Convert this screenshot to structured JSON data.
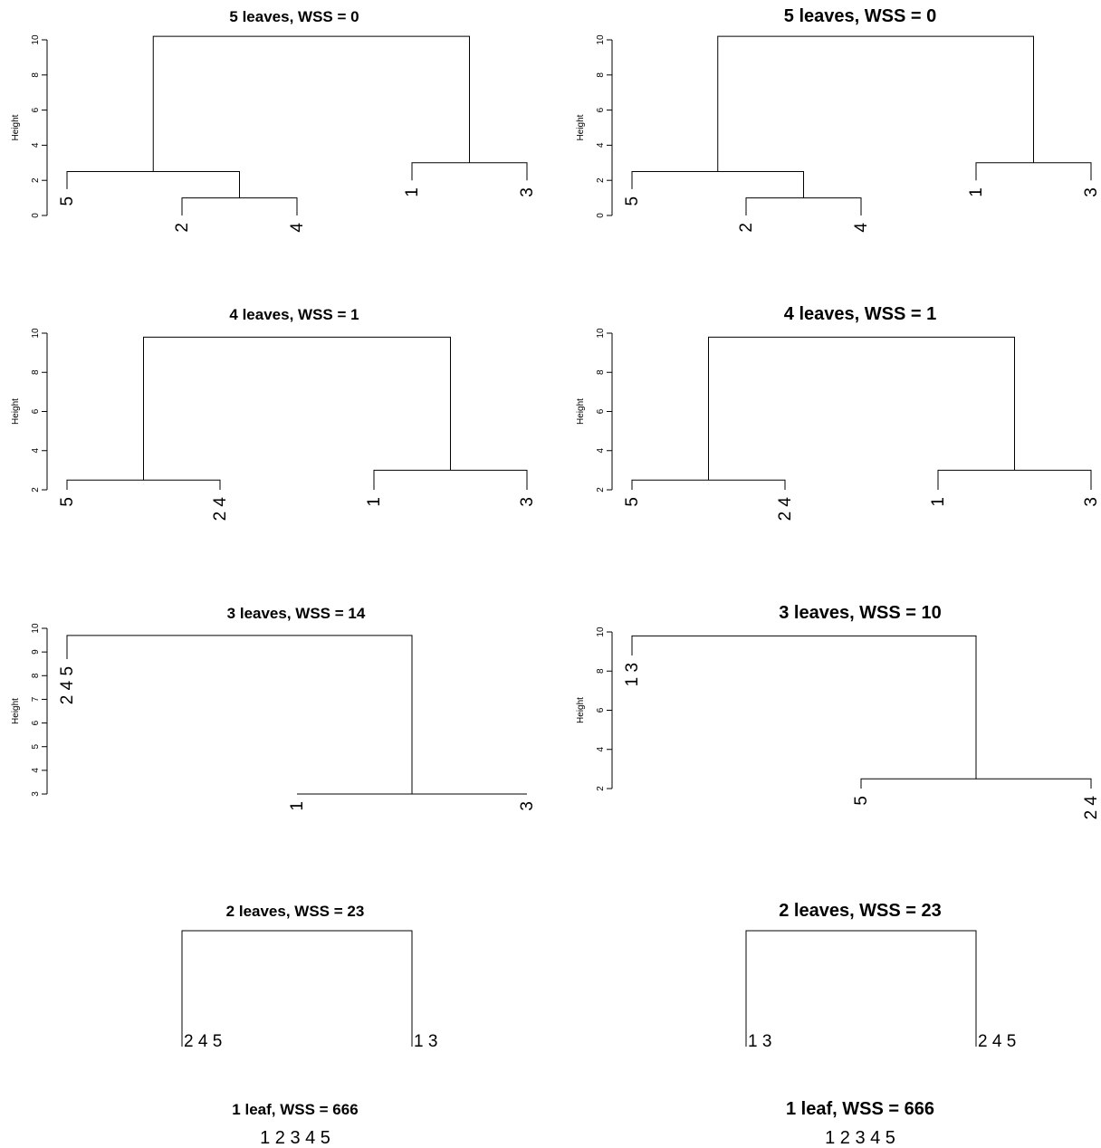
{
  "chart_data": [
    {
      "type": "dendrogram",
      "title": "5 leaves, WSS = 0",
      "ylabel": "Height",
      "ylim": [
        0,
        10
      ],
      "yticks": [
        "0",
        "2",
        "4",
        "6",
        "8",
        "10"
      ],
      "leaves": [
        "5",
        "2",
        "4",
        "1",
        "3"
      ],
      "merges": [
        {
          "members": [
            "2",
            "4"
          ],
          "height": 1.0
        },
        {
          "members": [
            "1",
            "3"
          ],
          "height": 3.0
        },
        {
          "members": [
            "5",
            "2 4"
          ],
          "height": 2.5
        },
        {
          "members": [
            "5 2 4",
            "1 3"
          ],
          "height": 10.2
        }
      ]
    },
    {
      "type": "dendrogram",
      "title": "5 leaves, WSS = 0",
      "ylabel": "Height",
      "ylim": [
        0,
        10
      ],
      "yticks": [
        "0",
        "2",
        "4",
        "6",
        "8",
        "10"
      ],
      "leaves": [
        "5",
        "2",
        "4",
        "1",
        "3"
      ],
      "merges": [
        {
          "members": [
            "2",
            "4"
          ],
          "height": 1.0
        },
        {
          "members": [
            "1",
            "3"
          ],
          "height": 3.0
        },
        {
          "members": [
            "5",
            "2 4"
          ],
          "height": 2.5
        },
        {
          "members": [
            "5 2 4",
            "1 3"
          ],
          "height": 10.2
        }
      ]
    },
    {
      "type": "dendrogram",
      "title": "4 leaves, WSS = 1",
      "ylabel": "Height",
      "ylim": [
        2,
        10
      ],
      "yticks": [
        "2",
        "4",
        "6",
        "8",
        "10"
      ],
      "leaves": [
        "5",
        "2 4",
        "1",
        "3"
      ],
      "merges": [
        {
          "members": [
            "5",
            "2 4"
          ],
          "height": 2.5
        },
        {
          "members": [
            "1",
            "3"
          ],
          "height": 3.0
        },
        {
          "members": [
            "5 2 4",
            "1 3"
          ],
          "height": 9.8
        }
      ]
    },
    {
      "type": "dendrogram",
      "title": "4 leaves, WSS = 1",
      "ylabel": "Height",
      "ylim": [
        2,
        10
      ],
      "yticks": [
        "2",
        "4",
        "6",
        "8",
        "10"
      ],
      "leaves": [
        "5",
        "2 4",
        "1",
        "3"
      ],
      "merges": [
        {
          "members": [
            "5",
            "2 4"
          ],
          "height": 2.5
        },
        {
          "members": [
            "1",
            "3"
          ],
          "height": 3.0
        },
        {
          "members": [
            "5 2 4",
            "1 3"
          ],
          "height": 9.8
        }
      ]
    },
    {
      "type": "dendrogram",
      "title": "3 leaves, WSS = 14",
      "ylabel": "Height",
      "ylim": [
        3,
        10
      ],
      "yticks": [
        "3",
        "4",
        "5",
        "6",
        "7",
        "8",
        "9",
        "10"
      ],
      "leaves": [
        "2 4 5",
        "1",
        "3"
      ],
      "merges": [
        {
          "members": [
            "1",
            "3"
          ],
          "height": 3.0
        },
        {
          "members": [
            "2 4 5",
            "1 3"
          ],
          "height": 9.7
        }
      ]
    },
    {
      "type": "dendrogram",
      "title": "3 leaves, WSS = 10",
      "ylabel": "Height",
      "ylim": [
        2,
        10
      ],
      "yticks": [
        "2",
        "4",
        "6",
        "8",
        "10"
      ],
      "leaves": [
        "1 3",
        "5",
        "2 4"
      ],
      "merges": [
        {
          "members": [
            "5",
            "2 4"
          ],
          "height": 2.5
        },
        {
          "members": [
            "1 3",
            "5 2 4"
          ],
          "height": 9.8
        }
      ]
    },
    {
      "type": "dendrogram",
      "title": "2  leaves, WSS = 23",
      "leaves": [
        "2 4 5",
        "1 3"
      ]
    },
    {
      "type": "dendrogram",
      "title": "2  leaves, WSS = 23",
      "leaves": [
        "1 3",
        "2 4 5"
      ]
    },
    {
      "type": "dendrogram",
      "title": "1  leaf, WSS = 666",
      "leaves": [
        "1 2 3 4 5"
      ]
    },
    {
      "type": "dendrogram",
      "title": "1  leaf, WSS = 666",
      "leaves": [
        "1 2 3 4 5"
      ]
    }
  ]
}
